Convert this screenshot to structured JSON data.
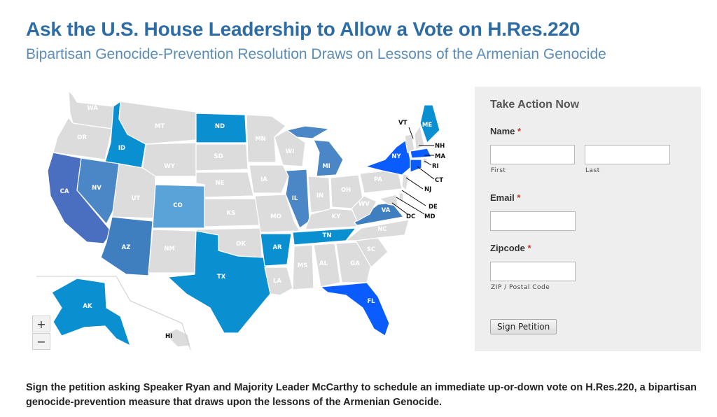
{
  "header": {
    "title": "Ask the U.S. House Leadership to Allow a Vote on H.Res.220",
    "subtitle": "Bipartisan Genocide-Prevention Resolution Draws on Lessons of the Armenian Genocide"
  },
  "map": {
    "zoom_in": "+",
    "zoom_out": "−",
    "colors": {
      "default": "#dcdcdc",
      "tier1": "#0a8fd0",
      "tier2": "#3f7fbf",
      "tier3": "#4a6ec0",
      "tier4": "#0b5cff",
      "tier5": "#5aa3d9",
      "tier6": "#4b86c6"
    },
    "states": {
      "WA": "WA",
      "OR": "OR",
      "CA": "CA",
      "ID": "ID",
      "NV": "NV",
      "MT": "MT",
      "WY": "WY",
      "UT": "UT",
      "AZ": "AZ",
      "CO": "CO",
      "NM": "NM",
      "ND": "ND",
      "SD": "SD",
      "NE": "NE",
      "KS": "KS",
      "OK": "OK",
      "TX": "TX",
      "MN": "MN",
      "IA": "IA",
      "MO": "MO",
      "AR": "AR",
      "LA": "LA",
      "WI": "WI",
      "IL": "IL",
      "MI": "MI",
      "IN": "IN",
      "OH": "OH",
      "KY": "KY",
      "TN": "TN",
      "MS": "MS",
      "AL": "AL",
      "GA": "GA",
      "FL": "FL",
      "SC": "SC",
      "NC": "NC",
      "VA": "VA",
      "WV": "WV",
      "PA": "PA",
      "NY": "NY",
      "VT": "VT",
      "NH": "NH",
      "ME": "ME",
      "MA": "MA",
      "RI": "RI",
      "CT": "CT",
      "NJ": "NJ",
      "DE": "DE",
      "MD": "MD",
      "DC": "DC",
      "AK": "AK",
      "HI": "HI"
    }
  },
  "form": {
    "heading": "Take Action Now",
    "name_label": "Name",
    "required_mark": "*",
    "first_sub": "First",
    "last_sub": "Last",
    "email_label": "Email",
    "zip_label": "Zipcode",
    "zip_sub": "ZIP / Postal Code",
    "submit": "Sign Petition",
    "first_value": "",
    "last_value": "",
    "email_value": "",
    "zip_value": ""
  },
  "footer": {
    "text": "Sign the petition asking Speaker Ryan and Majority Leader McCarthy to schedule an immediate up-or-down vote on H.Res.220, a bipartisan genocide-prevention measure that draws upon the lessons of the Armenian Genocide."
  }
}
